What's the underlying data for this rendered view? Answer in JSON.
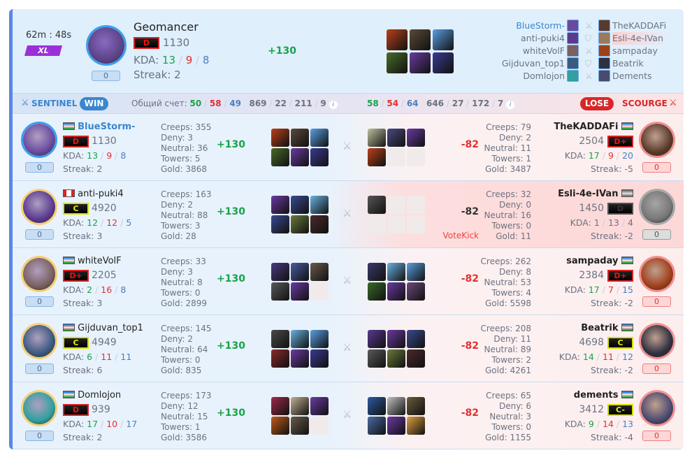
{
  "header": {
    "duration": "62m : 48s",
    "mode": "XL",
    "hero": "Geomancer",
    "rank": "D",
    "rating": "1130",
    "kda_label": "KDA:",
    "kda": [
      "13",
      "9",
      "8"
    ],
    "streak": "Streak: 2",
    "reports": "0",
    "delta": "+130",
    "items": [
      "#b8401a",
      "#5a4a3a",
      "#5a9ee0",
      "#4a6a2a",
      "#6a3aa0",
      "#3a3a90"
    ]
  },
  "matchups": [
    {
      "left": "BlueStorm-",
      "right": "TheKADDAFi",
      "icon": "crossed-swords-icon",
      "left_color": "#6a4aa0",
      "right_color": "#5a3a2a",
      "self": true
    },
    {
      "left": "anti-puki4",
      "right": "Esli-4e-IVan",
      "icon": "shield-icon",
      "left_color": "#5a3a90",
      "right_color": "#9a7a5a",
      "leaver": true
    },
    {
      "left": "whiteVolF",
      "right": "sampaday",
      "icon": "crossed-swords-icon",
      "left_color": "#7a6060",
      "right_color": "#a0401a"
    },
    {
      "left": "Gijduvan_top1",
      "right": "Beatrik",
      "icon": "shield-icon",
      "left_color": "#3a5a80",
      "right_color": "#303040"
    },
    {
      "left": "Domlojon",
      "right": "Dements",
      "icon": "crossed-swords-icon",
      "left_color": "#30a0a0",
      "right_color": "#4a4a70"
    }
  ],
  "sentinel": {
    "label": "SENTINEL",
    "result": "WIN",
    "total_label": "Общий счет:",
    "kda": [
      "50",
      "58",
      "49"
    ],
    "stats": [
      "869",
      "22",
      "211",
      "9"
    ]
  },
  "scourge": {
    "label": "SCOURGE",
    "result": "LOSE",
    "kda": [
      "58",
      "54",
      "64"
    ],
    "stats": [
      "646",
      "27",
      "172",
      "7"
    ]
  },
  "stat_labels": {
    "creeps": "Creeps:",
    "deny": "Deny:",
    "neutral": "Neutral:",
    "towers": "Towers:",
    "gold": "Gold:",
    "kda": "KDA:",
    "streak": "Streak:"
  },
  "left_players": [
    {
      "name": "BlueStorm-",
      "flag": "uz",
      "rank": "D",
      "rating": "1130",
      "kda": [
        "13",
        "9",
        "8"
      ],
      "streak": "2",
      "reports": "0",
      "creeps": "355",
      "deny": "3",
      "neutral": "36",
      "towers": "5",
      "gold": "3868",
      "delta": "+130",
      "avatar": "#6a4aa0",
      "self": true,
      "items": [
        "#b8401a",
        "#5a4a3a",
        "#5a9ee0",
        "#4a6a2a",
        "#6a3aa0",
        "#3a3a90"
      ]
    },
    {
      "name": "anti-puki4",
      "flag": "ca",
      "rank": "C",
      "rating": "4920",
      "kda": [
        "12",
        "12",
        "5"
      ],
      "streak": "3",
      "reports": "0",
      "creeps": "163",
      "deny": "2",
      "neutral": "88",
      "towers": "3",
      "gold": "28",
      "delta": "+130",
      "avatar": "#5a3a90",
      "items": [
        "#6a3aa0",
        "#3a4a90",
        "#6ab0e0",
        "#3a4a90",
        "#6a7a3a",
        "#4a2a2a"
      ]
    },
    {
      "name": "whiteVolF",
      "flag": "uz",
      "rank": "D+",
      "rating": "2205",
      "kda": [
        "2",
        "16",
        "8"
      ],
      "streak": "3",
      "reports": "0",
      "creeps": "33",
      "deny": "3",
      "neutral": "8",
      "towers": "0",
      "gold": "2899",
      "delta": "+130",
      "avatar": "#7a6060",
      "items": [
        "#4a3a80",
        "#4a5aa0",
        "#6a5a4a",
        "#5a5a5a",
        "#6a3aa0",
        ""
      ]
    },
    {
      "name": "Gijduvan_top1",
      "flag": "uz",
      "rank": "C",
      "rating": "4949",
      "kda": [
        "6",
        "11",
        "11"
      ],
      "streak": "6",
      "reports": "0",
      "creeps": "145",
      "deny": "2",
      "neutral": "64",
      "towers": "0",
      "gold": "835",
      "delta": "+130",
      "avatar": "#3a5a80",
      "items": [
        "#4a4a4a",
        "#6ab0e0",
        "#5a9ee0",
        "#8a2a2a",
        "#6a3aa0",
        "#3a3a90"
      ]
    },
    {
      "name": "Domlojon",
      "flag": "uz",
      "rank": "D",
      "rating": "939",
      "kda": [
        "17",
        "10",
        "17"
      ],
      "streak": "2",
      "reports": "0",
      "creeps": "173",
      "deny": "12",
      "neutral": "15",
      "towers": "1",
      "gold": "3586",
      "delta": "+130",
      "avatar": "#30a0a0",
      "items": [
        "#a02a4a",
        "#c0b090",
        "#6a3aa0",
        "#c05a1a",
        "#6a5a4a",
        ""
      ]
    }
  ],
  "right_players": [
    {
      "name": "TheKADDAFi",
      "flag": "uz",
      "rank": "D+",
      "rating": "2504",
      "kda": [
        "17",
        "9",
        "20"
      ],
      "streak": "-5",
      "reports": "0",
      "creeps": "79",
      "deny": "2",
      "neutral": "11",
      "towers": "1",
      "gold": "3487",
      "delta": "-82",
      "avatar": "#5a3a2a",
      "items": [
        "#c0c0a0",
        "#4a4a80",
        "#6a3aa0",
        "#b8401a",
        "",
        ""
      ]
    },
    {
      "name": "Esli-4e-IVan",
      "flag": "uz",
      "rank": "D",
      "rating": "1450",
      "kda": [
        "1",
        "13",
        "4"
      ],
      "streak": "-2",
      "reports": "0",
      "creeps": "32",
      "deny": "0",
      "neutral": "16",
      "towers": "0",
      "gold": "11",
      "delta": "-82",
      "note": "VoteKick",
      "avatar": "#777",
      "leaver": true,
      "items": [
        "#555",
        "",
        "",
        "",
        "",
        ""
      ]
    },
    {
      "name": "sampaday",
      "flag": "uz",
      "rank": "D+",
      "rating": "2384",
      "kda": [
        "17",
        "7",
        "15"
      ],
      "streak": "-2",
      "reports": "0",
      "creeps": "262",
      "deny": "8",
      "neutral": "53",
      "towers": "4",
      "gold": "5598",
      "delta": "-82",
      "avatar": "#a0401a",
      "items": [
        "#3a3a6a",
        "#6ab0e0",
        "#5a9ee0",
        "#3a6a2a",
        "#6a3aa0",
        "#6a4a7a"
      ]
    },
    {
      "name": "Beatrik",
      "flag": "uz",
      "rank": "C",
      "rating": "4698",
      "kda": [
        "14",
        "11",
        "12"
      ],
      "streak": "-2",
      "reports": "0",
      "creeps": "208",
      "deny": "11",
      "neutral": "89",
      "towers": "2",
      "gold": "4261",
      "delta": "-82",
      "avatar": "#303040",
      "items": [
        "#5a3a90",
        "#6a3aa0",
        "#3a4a90",
        "#5a5a5a",
        "#6a7a3a",
        "#4a2a2a"
      ]
    },
    {
      "name": "dements",
      "flag": "uz",
      "rank": "C-",
      "rating": "3412",
      "kda": [
        "9",
        "14",
        "13"
      ],
      "streak": "-4",
      "reports": "0",
      "creeps": "65",
      "deny": "6",
      "neutral": "3",
      "towers": "0",
      "gold": "1155",
      "delta": "-82",
      "avatar": "#4a4a70",
      "items": [
        "#2a5aa0",
        "#c0c0c0",
        "#6a5a3a",
        "#4a6aa0",
        "#6a3aa0",
        "#e0a040"
      ]
    }
  ],
  "colors": {
    "win": "#3a86d0",
    "lose": "#d62828",
    "sentinel": "#3a86d0",
    "scourge": "#d62828",
    "positive": "#17a34a",
    "negative": "#e23030"
  }
}
